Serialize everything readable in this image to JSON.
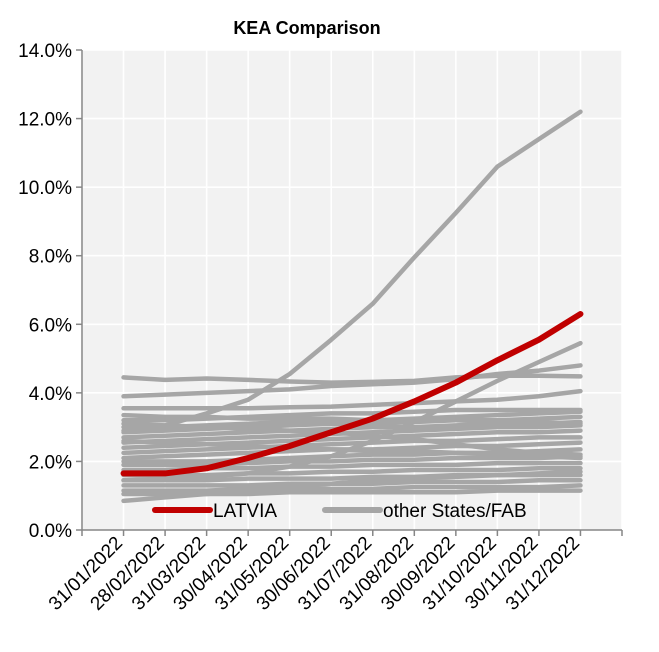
{
  "chart_data": {
    "type": "line",
    "title": "KEA Comparison",
    "xlabel": "",
    "ylabel": "",
    "ylim": [
      0,
      14
    ],
    "y_ticks": [
      "0.0%",
      "2.0%",
      "4.0%",
      "6.0%",
      "8.0%",
      "10.0%",
      "12.0%",
      "14.0%"
    ],
    "y_tick_values": [
      0,
      2,
      4,
      6,
      8,
      10,
      12,
      14
    ],
    "categories": [
      "31/01/2022",
      "28/02/2022",
      "31/03/2022",
      "30/04/2022",
      "31/05/2022",
      "30/06/2022",
      "31/07/2022",
      "31/08/2022",
      "30/09/2022",
      "31/10/2022",
      "30/11/2022",
      "31/12/2022"
    ],
    "grid": true,
    "legend_placement": "bottom",
    "legend": [
      {
        "label": "LATVIA",
        "color": "#c00000"
      },
      {
        "label": "other States/FAB",
        "color": "#a6a6a6"
      }
    ],
    "highlight_series": {
      "name": "LATVIA",
      "color": "#c00000",
      "values": [
        1.65,
        1.65,
        1.8,
        2.1,
        2.45,
        2.85,
        3.25,
        3.75,
        4.3,
        4.95,
        5.55,
        6.3
      ]
    },
    "other_color": "#a6a6a6",
    "other_series": [
      {
        "values": [
          2.9,
          3.05,
          3.4,
          3.8,
          4.55,
          5.55,
          6.6,
          7.95,
          9.25,
          10.6,
          11.4,
          12.2
        ]
      },
      {
        "values": [
          4.45,
          4.38,
          4.42,
          4.38,
          4.33,
          4.3,
          4.32,
          4.35,
          4.45,
          4.5,
          4.5,
          4.48
        ]
      },
      {
        "values": [
          3.9,
          3.95,
          4.0,
          4.05,
          4.1,
          4.2,
          4.25,
          4.3,
          4.4,
          4.55,
          4.65,
          4.8
        ]
      },
      {
        "values": [
          3.55,
          3.55,
          3.55,
          3.55,
          3.58,
          3.6,
          3.65,
          3.7,
          3.75,
          3.8,
          3.9,
          4.05
        ]
      },
      {
        "values": [
          1.45,
          1.5,
          1.55,
          1.65,
          1.85,
          2.15,
          2.6,
          3.15,
          3.75,
          4.35,
          4.9,
          5.45
        ]
      },
      {
        "values": [
          3.2,
          3.2,
          3.25,
          3.3,
          3.35,
          3.4,
          3.4,
          3.45,
          3.5,
          3.5,
          3.5,
          3.5
        ]
      },
      {
        "values": [
          3.0,
          3.0,
          3.05,
          3.1,
          3.15,
          3.2,
          3.2,
          3.25,
          3.3,
          3.35,
          3.4,
          3.45
        ]
      },
      {
        "values": [
          2.85,
          2.9,
          2.95,
          3.0,
          3.05,
          3.1,
          3.1,
          3.15,
          3.2,
          3.2,
          3.25,
          3.3
        ]
      },
      {
        "values": [
          2.7,
          2.75,
          2.8,
          2.85,
          2.9,
          2.95,
          3.0,
          3.0,
          3.05,
          3.1,
          3.1,
          3.15
        ]
      },
      {
        "values": [
          2.55,
          2.6,
          2.65,
          2.7,
          2.75,
          2.8,
          2.85,
          2.9,
          2.95,
          3.0,
          3.0,
          3.05
        ]
      },
      {
        "values": [
          2.4,
          2.45,
          2.5,
          2.55,
          2.6,
          2.65,
          2.7,
          2.75,
          2.8,
          2.85,
          2.85,
          2.9
        ]
      },
      {
        "values": [
          2.25,
          2.3,
          2.35,
          2.4,
          2.45,
          2.5,
          2.55,
          2.6,
          2.6,
          2.65,
          2.7,
          2.7
        ]
      },
      {
        "values": [
          2.1,
          2.15,
          2.2,
          2.25,
          2.3,
          2.35,
          2.35,
          2.4,
          2.45,
          2.45,
          2.5,
          2.55
        ]
      },
      {
        "values": [
          3.1,
          3.05,
          3.0,
          2.95,
          2.9,
          2.85,
          2.75,
          2.65,
          2.5,
          2.35,
          2.25,
          2.2
        ]
      },
      {
        "values": [
          2.0,
          2.0,
          2.0,
          2.05,
          2.1,
          2.15,
          2.2,
          2.2,
          2.25,
          2.25,
          2.3,
          2.35
        ]
      },
      {
        "values": [
          1.9,
          1.9,
          1.9,
          1.95,
          2.0,
          2.0,
          2.05,
          2.05,
          2.1,
          2.1,
          2.1,
          2.15
        ]
      },
      {
        "values": [
          1.75,
          1.75,
          1.8,
          1.8,
          1.85,
          1.85,
          1.9,
          1.9,
          1.9,
          1.95,
          1.95,
          1.95
        ]
      },
      {
        "values": [
          1.6,
          1.6,
          1.6,
          1.65,
          1.65,
          1.7,
          1.7,
          1.75,
          1.75,
          1.75,
          1.8,
          1.8
        ]
      },
      {
        "values": [
          1.45,
          1.45,
          1.45,
          1.5,
          1.5,
          1.5,
          1.55,
          1.55,
          1.6,
          1.6,
          1.6,
          1.6
        ]
      },
      {
        "values": [
          1.3,
          1.3,
          1.3,
          1.3,
          1.35,
          1.35,
          1.35,
          1.4,
          1.4,
          1.4,
          1.45,
          1.45
        ]
      },
      {
        "values": [
          1.15,
          1.15,
          1.15,
          1.2,
          1.2,
          1.2,
          1.2,
          1.25,
          1.25,
          1.25,
          1.25,
          1.3
        ]
      },
      {
        "values": [
          1.05,
          1.05,
          1.05,
          1.05,
          1.1,
          1.1,
          1.1,
          1.1,
          1.1,
          1.15,
          1.15,
          1.15
        ]
      },
      {
        "values": [
          0.85,
          0.95,
          1.05,
          1.15,
          1.25,
          1.35,
          1.45,
          1.5,
          1.55,
          1.6,
          1.65,
          1.7
        ]
      },
      {
        "values": [
          3.35,
          3.3,
          3.3,
          3.25,
          3.25,
          3.25,
          3.2,
          3.2,
          3.2,
          3.15,
          3.15,
          3.1
        ]
      },
      {
        "values": [
          2.6,
          2.55,
          2.5,
          2.45,
          2.4,
          2.35,
          2.3,
          2.3,
          2.25,
          2.2,
          2.15,
          2.1
        ]
      }
    ]
  }
}
